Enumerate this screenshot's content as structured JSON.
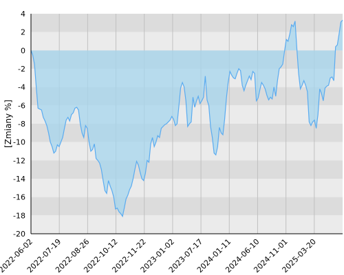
{
  "chart_data": {
    "type": "area",
    "ylabel": "[Zmiany %]",
    "ylim": [
      -20,
      4
    ],
    "y_ticks": [
      4,
      2,
      0,
      -2,
      -4,
      -6,
      -8,
      -10,
      -12,
      -14,
      -16,
      -18,
      -20
    ],
    "x_tick_labels": [
      "2022-06-02",
      "2022-07-19",
      "2022-08-26",
      "2022-10-12",
      "2022-11-22",
      "2023-01-02",
      "2023-07-17",
      "2024-01-11",
      "2024-06-10",
      "2024-11-01",
      "2025-03-20"
    ],
    "grid": true,
    "colors": {
      "line": "#5aabf0",
      "fill": "#a6d6ee",
      "band_dark": "#dcdcdc",
      "band_light": "#ebebeb",
      "vgrid": "#c0c0c0",
      "axis": "#000000"
    },
    "series": [
      {
        "name": "",
        "values": [
          0,
          -0.5,
          -1.5,
          -4,
          -6.3,
          -6.4,
          -6.5,
          -7.3,
          -7.7,
          -8.2,
          -9,
          -10,
          -10.5,
          -11.2,
          -11,
          -10.3,
          -10.5,
          -10,
          -9.5,
          -8.5,
          -7.6,
          -7.3,
          -7.7,
          -7,
          -6.8,
          -6.3,
          -6.2,
          -6.5,
          -8,
          -9,
          -9.5,
          -8.2,
          -8.5,
          -10,
          -11,
          -10.8,
          -10.2,
          -11.8,
          -12,
          -12.3,
          -13,
          -14.2,
          -15.3,
          -15.6,
          -14.2,
          -14.8,
          -15.3,
          -16,
          -17.3,
          -17.2,
          -17.6,
          -17.8,
          -18.1,
          -17.2,
          -16.2,
          -15.8,
          -15.2,
          -14.8,
          -14,
          -13,
          -12.1,
          -12.5,
          -13.3,
          -14,
          -14.2,
          -13.4,
          -12,
          -12.2,
          -10.2,
          -9.5,
          -10.5,
          -10,
          -9.3,
          -9.5,
          -8.5,
          -8.3,
          -8.1,
          -8,
          -7.8,
          -7.6,
          -7.2,
          -7.5,
          -8.2,
          -8,
          -6.1,
          -4.1,
          -3.5,
          -4,
          -5.5,
          -8.3,
          -8,
          -7.8,
          -5.1,
          -6.2,
          -5.5,
          -5,
          -5.8,
          -5.5,
          -5.1,
          -2.8,
          -5.4,
          -6,
          -8.3,
          -9.5,
          -11.2,
          -11.4,
          -10.5,
          -8.4,
          -9,
          -9.2,
          -7.5,
          -5.2,
          -3.5,
          -2.3,
          -2.7,
          -3.0,
          -3.1,
          -2.5,
          -2.0,
          -2.2,
          -3.8,
          -4.4,
          -3.8,
          -3.3,
          -2.8,
          -3.2,
          -2.3,
          -2.5,
          -5.5,
          -5.2,
          -4.3,
          -3.5,
          -3.8,
          -4.2,
          -4.9,
          -5.4,
          -5.1,
          -5.3,
          -4.0,
          -5.0,
          -3.3,
          -2.0,
          -1.8,
          -1.5,
          -0.1,
          1.2,
          1.0,
          1.8,
          2.8,
          2.6,
          3.2,
          0.2,
          -2.5,
          -4.2,
          -3.8,
          -3.3,
          -3.8,
          -4.5,
          -7.8,
          -8.2,
          -7.8,
          -7.6,
          -8.5,
          -7.0,
          -4.2,
          -4.7,
          -5.5,
          -4.1,
          -3.9,
          -3.8,
          -3.0,
          -2.9,
          -3.3,
          0.4,
          0.6,
          1.8,
          3.1,
          3.3
        ]
      }
    ]
  }
}
